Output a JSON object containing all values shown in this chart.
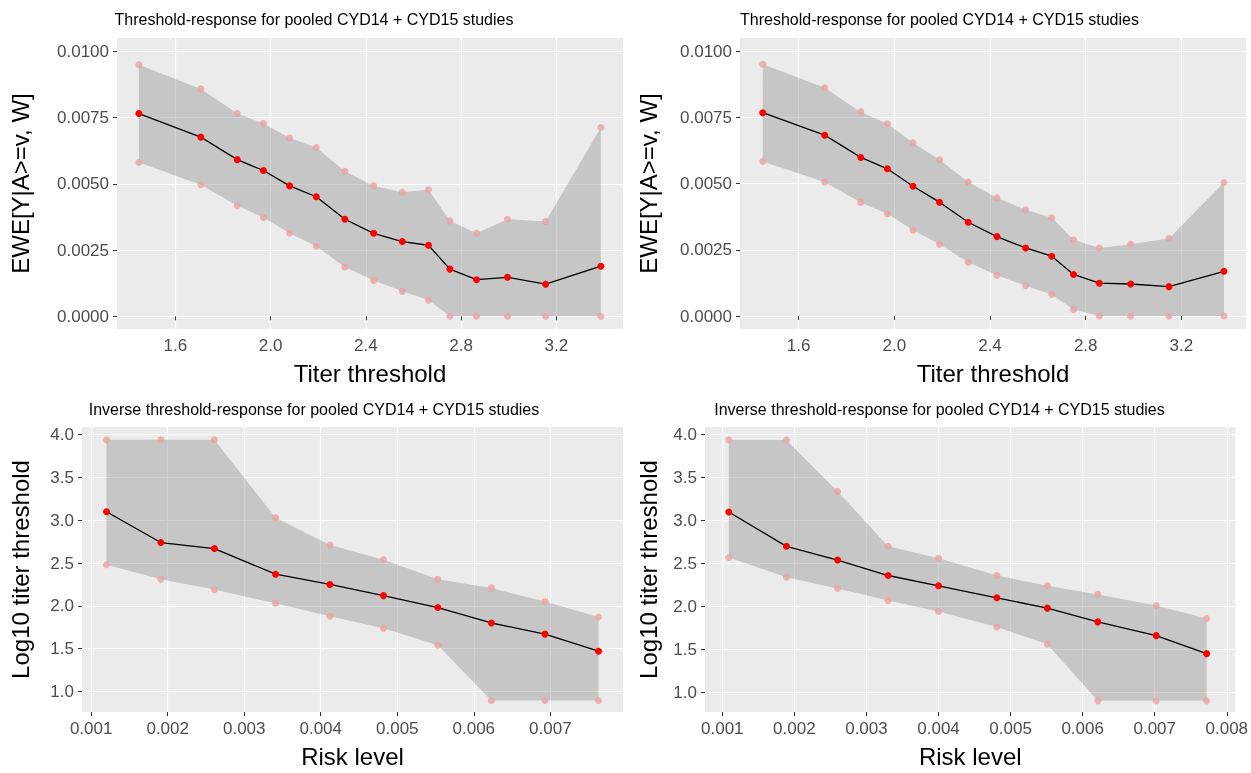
{
  "chart_data": [
    {
      "type": "line",
      "title": "Threshold-response for pooled CYD14 + CYD15 studies",
      "xlabel": "Titer threshold",
      "ylabel": "EWE[Y|A>=v, W]",
      "marker": "circle",
      "grid": true,
      "xlim": [
        1.355,
        3.48
      ],
      "xticks": [
        {
          "value": 1.6,
          "label": "1.6"
        },
        {
          "value": 2.0,
          "label": "2.0"
        },
        {
          "value": 2.4,
          "label": "2.4"
        },
        {
          "value": 2.8,
          "label": "2.8"
        },
        {
          "value": 3.2,
          "label": "3.2"
        }
      ],
      "ylim": [
        -0.00048,
        0.0105
      ],
      "yticks": [
        {
          "value": 0,
          "label": "0.0000"
        },
        {
          "value": 0.0025,
          "label": "0.0025"
        },
        {
          "value": 0.005,
          "label": "0.0050"
        },
        {
          "value": 0.0075,
          "label": "0.0075"
        },
        {
          "value": 0.01,
          "label": "0.0100"
        }
      ],
      "x": [
        1.447,
        1.707,
        1.86,
        1.97,
        2.08,
        2.192,
        2.312,
        2.433,
        2.553,
        2.663,
        2.753,
        2.865,
        2.995,
        3.155,
        3.387
      ],
      "series": [
        {
          "color": "#ff0000",
          "values": [
            0.00765,
            0.00676,
            0.00591,
            0.0055,
            0.00492,
            0.00451,
            0.00366,
            0.00313,
            0.00282,
            0.00268,
            0.00178,
            0.00138,
            0.00147,
            0.00121,
            0.00189
          ],
          "upper": [
            0.00949,
            0.00858,
            0.00765,
            0.00727,
            0.00673,
            0.00637,
            0.00547,
            0.00492,
            0.00468,
            0.00477,
            0.0036,
            0.00313,
            0.00366,
            0.00358,
            0.00712
          ],
          "lower": [
            0.0058,
            0.00496,
            0.00417,
            0.00373,
            0.00313,
            0.00264,
            0.00186,
            0.00135,
            0.00094,
            0.00061,
            0,
            0,
            0,
            0,
            0
          ]
        },
        {
          "type": "scatter",
          "color": "#e8a3a3",
          "values": [
            0.00949,
            0.00858,
            0.00765,
            0.00727,
            0.00673,
            0.00637,
            0.00547,
            0.00492,
            0.00468,
            0.00477,
            0.0036,
            0.00313,
            0.00366,
            0.00358,
            0.00712
          ]
        },
        {
          "type": "scatter",
          "color": "#e8a3a3",
          "values": [
            0.0058,
            0.00496,
            0.00417,
            0.00373,
            0.00313,
            0.00264,
            0.00186,
            0.00135,
            0.00094,
            0.00061,
            0,
            0,
            0,
            0,
            0
          ]
        }
      ]
    },
    {
      "type": "line",
      "title": "Threshold-response for pooled CYD14 + CYD15 studies",
      "xlabel": "Titer threshold",
      "ylabel": "EWE[Y|A>=v, W]",
      "marker": "circle",
      "grid": true,
      "xlim": [
        1.355,
        3.47
      ],
      "xticks": [
        {
          "value": 1.6,
          "label": "1.6"
        },
        {
          "value": 2.0,
          "label": "2.0"
        },
        {
          "value": 2.4,
          "label": "2.4"
        },
        {
          "value": 2.8,
          "label": "2.8"
        },
        {
          "value": 3.2,
          "label": "3.2"
        }
      ],
      "ylim": [
        -0.00049,
        0.0105
      ],
      "yticks": [
        {
          "value": 0,
          "label": "0.0000"
        },
        {
          "value": 0.0025,
          "label": "0.0025"
        },
        {
          "value": 0.005,
          "label": "0.0050"
        },
        {
          "value": 0.0075,
          "label": "0.0075"
        },
        {
          "value": 0.01,
          "label": "0.0100"
        }
      ],
      "x": [
        1.45,
        1.709,
        1.86,
        1.971,
        2.078,
        2.189,
        2.309,
        2.429,
        2.549,
        2.658,
        2.749,
        2.857,
        2.988,
        3.148,
        3.378
      ],
      "series": [
        {
          "color": "#ff0000",
          "values": [
            0.00768,
            0.00683,
            0.00599,
            0.00556,
            0.0049,
            0.0043,
            0.00354,
            0.003,
            0.00257,
            0.00226,
            0.00157,
            0.00124,
            0.00121,
            0.00111,
            0.00169
          ],
          "upper": [
            0.00951,
            0.00862,
            0.00771,
            0.00726,
            0.00654,
            0.0059,
            0.00506,
            0.00447,
            0.00401,
            0.00371,
            0.00288,
            0.00257,
            0.00271,
            0.00293,
            0.00504
          ],
          "lower": [
            0.00584,
            0.00506,
            0.00429,
            0.00386,
            0.00325,
            0.00271,
            0.00203,
            0.00154,
            0.00114,
            0.00081,
            0.00025,
            0,
            0,
            0,
            0
          ]
        },
        {
          "type": "scatter",
          "color": "#e8a3a3",
          "values": [
            0.00951,
            0.00862,
            0.00771,
            0.00726,
            0.00654,
            0.0059,
            0.00506,
            0.00447,
            0.00401,
            0.00371,
            0.00288,
            0.00257,
            0.00271,
            0.00293,
            0.00504
          ]
        },
        {
          "type": "scatter",
          "color": "#e8a3a3",
          "values": [
            0.00584,
            0.00506,
            0.00429,
            0.00386,
            0.00325,
            0.00271,
            0.00203,
            0.00154,
            0.00114,
            0.00081,
            0.00025,
            0,
            0,
            0,
            0
          ]
        }
      ]
    },
    {
      "type": "line",
      "title": "Inverse threshold-response for pooled CYD14 + CYD15 studies",
      "xlabel": "Risk level",
      "ylabel": "Log10 titer threshold",
      "marker": "circle",
      "grid": true,
      "xlim": [
        0.00088,
        0.00795
      ],
      "xticks": [
        0.001,
        0.002,
        0.003,
        0.004,
        0.005,
        0.006,
        0.007
      ],
      "ylim": [
        0.76,
        4.09
      ],
      "yticks": [
        {
          "value": 1,
          "label": "1.0"
        },
        1.5,
        {
          "value": 2,
          "label": "2.0"
        },
        2.5,
        {
          "value": 3,
          "label": "3.0"
        },
        3.5,
        {
          "value": 4,
          "label": "4.0"
        }
      ],
      "x": [
        0.0012,
        0.00191,
        0.00261,
        0.00341,
        0.00412,
        0.00482,
        0.00553,
        0.00623,
        0.00693,
        0.00763
      ],
      "series": [
        {
          "color": "#ff0000",
          "values": [
            3.1,
            2.74,
            2.67,
            2.37,
            2.25,
            2.12,
            1.98,
            1.8,
            1.67,
            1.47
          ],
          "upper": [
            3.94,
            3.94,
            3.94,
            3.03,
            2.71,
            2.54,
            2.31,
            2.21,
            2.05,
            1.87
          ],
          "lower": [
            2.48,
            2.31,
            2.19,
            2.03,
            1.88,
            1.74,
            1.54,
            0.895,
            0.895,
            0.895
          ]
        },
        {
          "type": "scatter",
          "color": "#e8a3a3",
          "values": [
            3.94,
            3.94,
            3.94,
            3.03,
            2.71,
            2.54,
            2.31,
            2.21,
            2.05,
            1.87
          ]
        },
        {
          "type": "scatter",
          "color": "#e8a3a3",
          "values": [
            2.48,
            2.31,
            2.19,
            2.03,
            1.88,
            1.74,
            1.54,
            0.895,
            0.895,
            0.895
          ]
        }
      ]
    },
    {
      "type": "line",
      "title": "Inverse threshold-response for pooled CYD14 + CYD15 studies",
      "xlabel": "Risk level",
      "ylabel": "Log10 titer threshold",
      "marker": "circle",
      "grid": true,
      "xlim": [
        0.00076,
        0.00812
      ],
      "xticks": [
        0.001,
        0.002,
        0.003,
        0.004,
        0.005,
        0.006,
        0.007,
        0.008
      ],
      "ylim": [
        0.77,
        4.09
      ],
      "yticks": [
        {
          "value": 1,
          "label": "1.0"
        },
        1.5,
        {
          "value": 2,
          "label": "2.0"
        },
        2.5,
        {
          "value": 3,
          "label": "3.0"
        },
        3.5,
        {
          "value": 4,
          "label": "4.0"
        }
      ],
      "x": [
        0.00109,
        0.00189,
        0.0026,
        0.0033,
        0.004,
        0.00481,
        0.00551,
        0.00621,
        0.00702,
        0.00772
      ],
      "series": [
        {
          "color": "#ff0000",
          "values": [
            3.1,
            2.7,
            2.54,
            2.36,
            2.24,
            2.1,
            1.98,
            1.82,
            1.66,
            1.45
          ],
          "upper": [
            3.94,
            3.94,
            3.34,
            2.7,
            2.56,
            2.36,
            2.24,
            2.14,
            2.01,
            1.86
          ],
          "lower": [
            2.57,
            2.34,
            2.21,
            2.07,
            1.94,
            1.76,
            1.56,
            0.9,
            0.9,
            0.9
          ]
        },
        {
          "type": "scatter",
          "color": "#e8a3a3",
          "values": [
            3.94,
            3.94,
            3.34,
            2.7,
            2.56,
            2.36,
            2.24,
            2.14,
            2.01,
            1.86
          ]
        },
        {
          "type": "scatter",
          "color": "#e8a3a3",
          "values": [
            2.57,
            2.34,
            2.21,
            2.07,
            1.94,
            1.76,
            1.56,
            0.9,
            0.9,
            0.9
          ]
        }
      ]
    }
  ]
}
